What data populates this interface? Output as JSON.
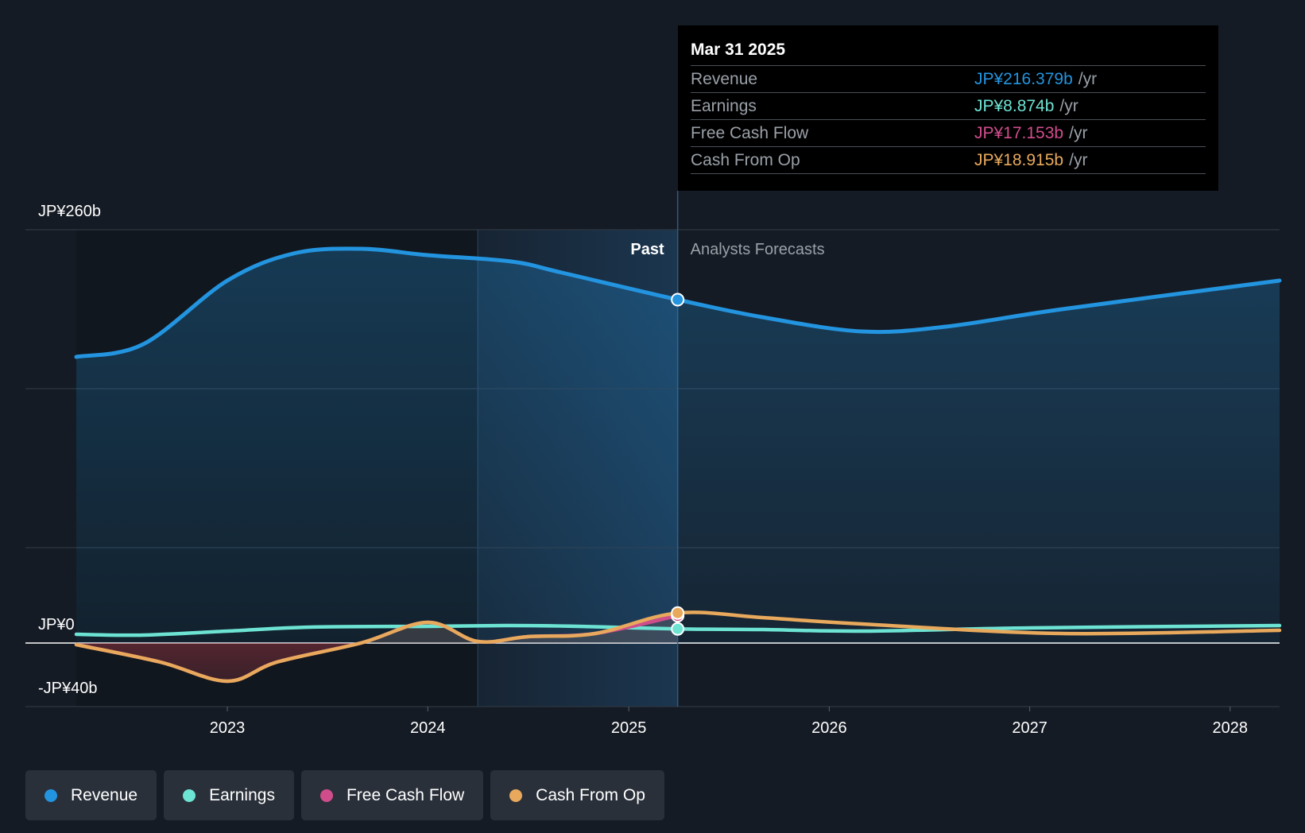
{
  "chart_data": {
    "type": "line",
    "x_domain": [
      "2022-04-01",
      "2028-03-31"
    ],
    "ylim": [
      -40,
      260
    ],
    "y_ticks": [
      {
        "value": 260,
        "label": "JP¥260b"
      },
      {
        "value": 0,
        "label": "JP¥0"
      },
      {
        "value": -40,
        "label": "-JP¥40b"
      }
    ],
    "x_ticks": [
      {
        "date": "2023-01-01",
        "label": "2023"
      },
      {
        "date": "2024-01-01",
        "label": "2024"
      },
      {
        "date": "2025-01-01",
        "label": "2025"
      },
      {
        "date": "2026-01-01",
        "label": "2026"
      },
      {
        "date": "2027-01-01",
        "label": "2027"
      },
      {
        "date": "2028-01-01",
        "label": "2028"
      }
    ],
    "past_label": "Past",
    "forecast_label": "Analysts Forecasts",
    "past_end": "2025-03-31",
    "highlight_start": "2024-04-01",
    "series": [
      {
        "name": "Revenue",
        "color": "#2394df",
        "points": [
          [
            "2022-04-01",
            180
          ],
          [
            "2022-08-01",
            188
          ],
          [
            "2023-01-01",
            228
          ],
          [
            "2023-05-01",
            245
          ],
          [
            "2023-09-01",
            248
          ],
          [
            "2024-01-01",
            244
          ],
          [
            "2024-06-01",
            240
          ],
          [
            "2024-09-01",
            233
          ],
          [
            "2025-03-31",
            216
          ],
          [
            "2025-09-01",
            205
          ],
          [
            "2026-03-01",
            196
          ],
          [
            "2026-08-01",
            199
          ],
          [
            "2027-03-01",
            210
          ],
          [
            "2028-03-31",
            228
          ]
        ]
      },
      {
        "name": "Earnings",
        "color": "#6de3d3",
        "points": [
          [
            "2022-04-01",
            5.5
          ],
          [
            "2022-08-01",
            5
          ],
          [
            "2023-01-01",
            7.5
          ],
          [
            "2023-06-01",
            10
          ],
          [
            "2024-01-01",
            10.5
          ],
          [
            "2024-06-01",
            11
          ],
          [
            "2024-10-01",
            10.5
          ],
          [
            "2025-03-31",
            8.9
          ],
          [
            "2025-09-01",
            8.5
          ],
          [
            "2026-03-01",
            7.5
          ],
          [
            "2027-01-01",
            9.5
          ],
          [
            "2028-03-31",
            11
          ]
        ]
      },
      {
        "name": "Free Cash Flow",
        "color": "#d04d8c",
        "points": [
          [
            "2022-04-01",
            -1
          ],
          [
            "2022-09-01",
            -12
          ],
          [
            "2023-01-01",
            -24
          ],
          [
            "2023-04-01",
            -12
          ],
          [
            "2023-09-01",
            0
          ],
          [
            "2024-01-01",
            13
          ],
          [
            "2024-04-01",
            1
          ],
          [
            "2024-07-01",
            4
          ],
          [
            "2024-11-01",
            6
          ],
          [
            "2025-03-31",
            17.2
          ]
        ]
      },
      {
        "name": "Cash From Op",
        "color": "#e8a95c",
        "points": [
          [
            "2022-04-01",
            -1
          ],
          [
            "2022-09-01",
            -12
          ],
          [
            "2023-01-01",
            -24
          ],
          [
            "2023-04-01",
            -12
          ],
          [
            "2023-09-01",
            0
          ],
          [
            "2024-01-01",
            13
          ],
          [
            "2024-04-01",
            1
          ],
          [
            "2024-07-01",
            4
          ],
          [
            "2024-11-01",
            6
          ],
          [
            "2025-03-31",
            18.9
          ],
          [
            "2025-09-01",
            16
          ],
          [
            "2026-03-01",
            12
          ],
          [
            "2027-03-01",
            6
          ],
          [
            "2028-03-31",
            8
          ]
        ]
      }
    ]
  },
  "tooltip": {
    "date": "Mar 31 2025",
    "rows": [
      {
        "label": "Revenue",
        "value": "JP¥216.379b",
        "unit": "/yr",
        "color": "#2394df"
      },
      {
        "label": "Earnings",
        "value": "JP¥8.874b",
        "unit": "/yr",
        "color": "#6de3d3"
      },
      {
        "label": "Free Cash Flow",
        "value": "JP¥17.153b",
        "unit": "/yr",
        "color": "#d04d8c"
      },
      {
        "label": "Cash From Op",
        "value": "JP¥18.915b",
        "unit": "/yr",
        "color": "#e8a95c"
      }
    ]
  },
  "legend": [
    {
      "label": "Revenue",
      "color": "#2394df"
    },
    {
      "label": "Earnings",
      "color": "#6de3d3"
    },
    {
      "label": "Free Cash Flow",
      "color": "#d04d8c"
    },
    {
      "label": "Cash From Op",
      "color": "#e8a95c"
    }
  ]
}
